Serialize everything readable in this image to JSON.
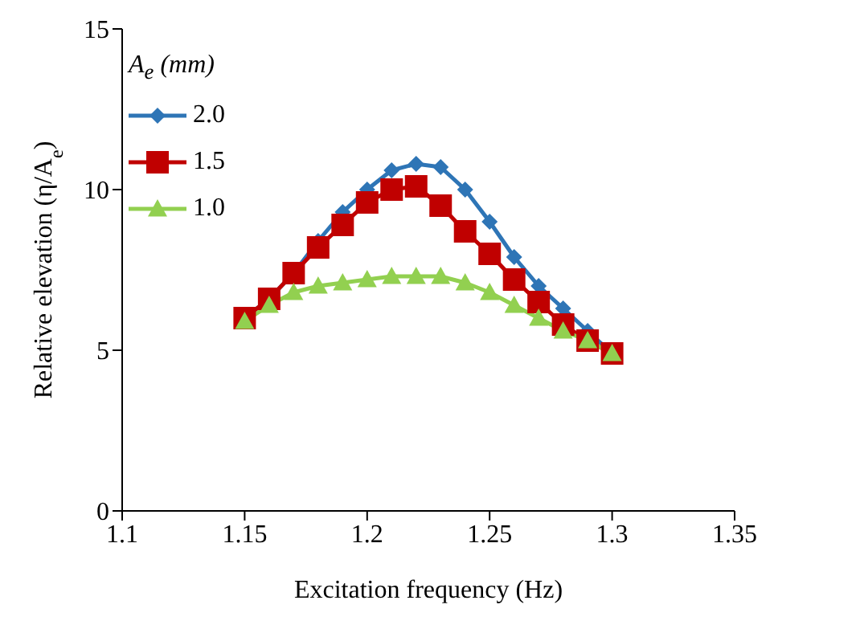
{
  "chart_data": {
    "type": "line",
    "xlabel": "Excitation frequency (Hz)",
    "ylabel": "Relative elevation (η/A$_{e}$)",
    "legend_title": "A$_{e}$ (mm)",
    "x": [
      1.15,
      1.16,
      1.17,
      1.18,
      1.19,
      1.2,
      1.21,
      1.22,
      1.23,
      1.24,
      1.25,
      1.26,
      1.27,
      1.28,
      1.29,
      1.3
    ],
    "series": [
      {
        "name": "2.0",
        "color": "#2e75b6",
        "marker": "diamond",
        "values": [
          6.0,
          6.6,
          7.4,
          8.4,
          9.3,
          10.0,
          10.6,
          10.8,
          10.7,
          10.0,
          9.0,
          7.9,
          7.0,
          6.3,
          5.6,
          4.9
        ]
      },
      {
        "name": "1.5",
        "color": "#c00000",
        "marker": "square",
        "values": [
          6.0,
          6.6,
          7.4,
          8.2,
          8.9,
          9.6,
          10.0,
          10.1,
          9.5,
          8.7,
          8.0,
          7.2,
          6.5,
          5.8,
          5.3,
          4.9
        ]
      },
      {
        "name": "1.0",
        "color": "#92d050",
        "marker": "triangle",
        "values": [
          5.9,
          6.4,
          6.8,
          7.0,
          7.1,
          7.2,
          7.3,
          7.3,
          7.3,
          7.1,
          6.8,
          6.4,
          6.0,
          5.6,
          5.3,
          4.9
        ]
      }
    ],
    "xlim": [
      1.1,
      1.35
    ],
    "xticks": [
      1.1,
      1.15,
      1.2,
      1.25,
      1.3,
      1.35
    ],
    "ylim": [
      0,
      15
    ],
    "yticks": [
      0,
      5,
      10,
      15
    ],
    "grid": false,
    "legend": "top left"
  }
}
